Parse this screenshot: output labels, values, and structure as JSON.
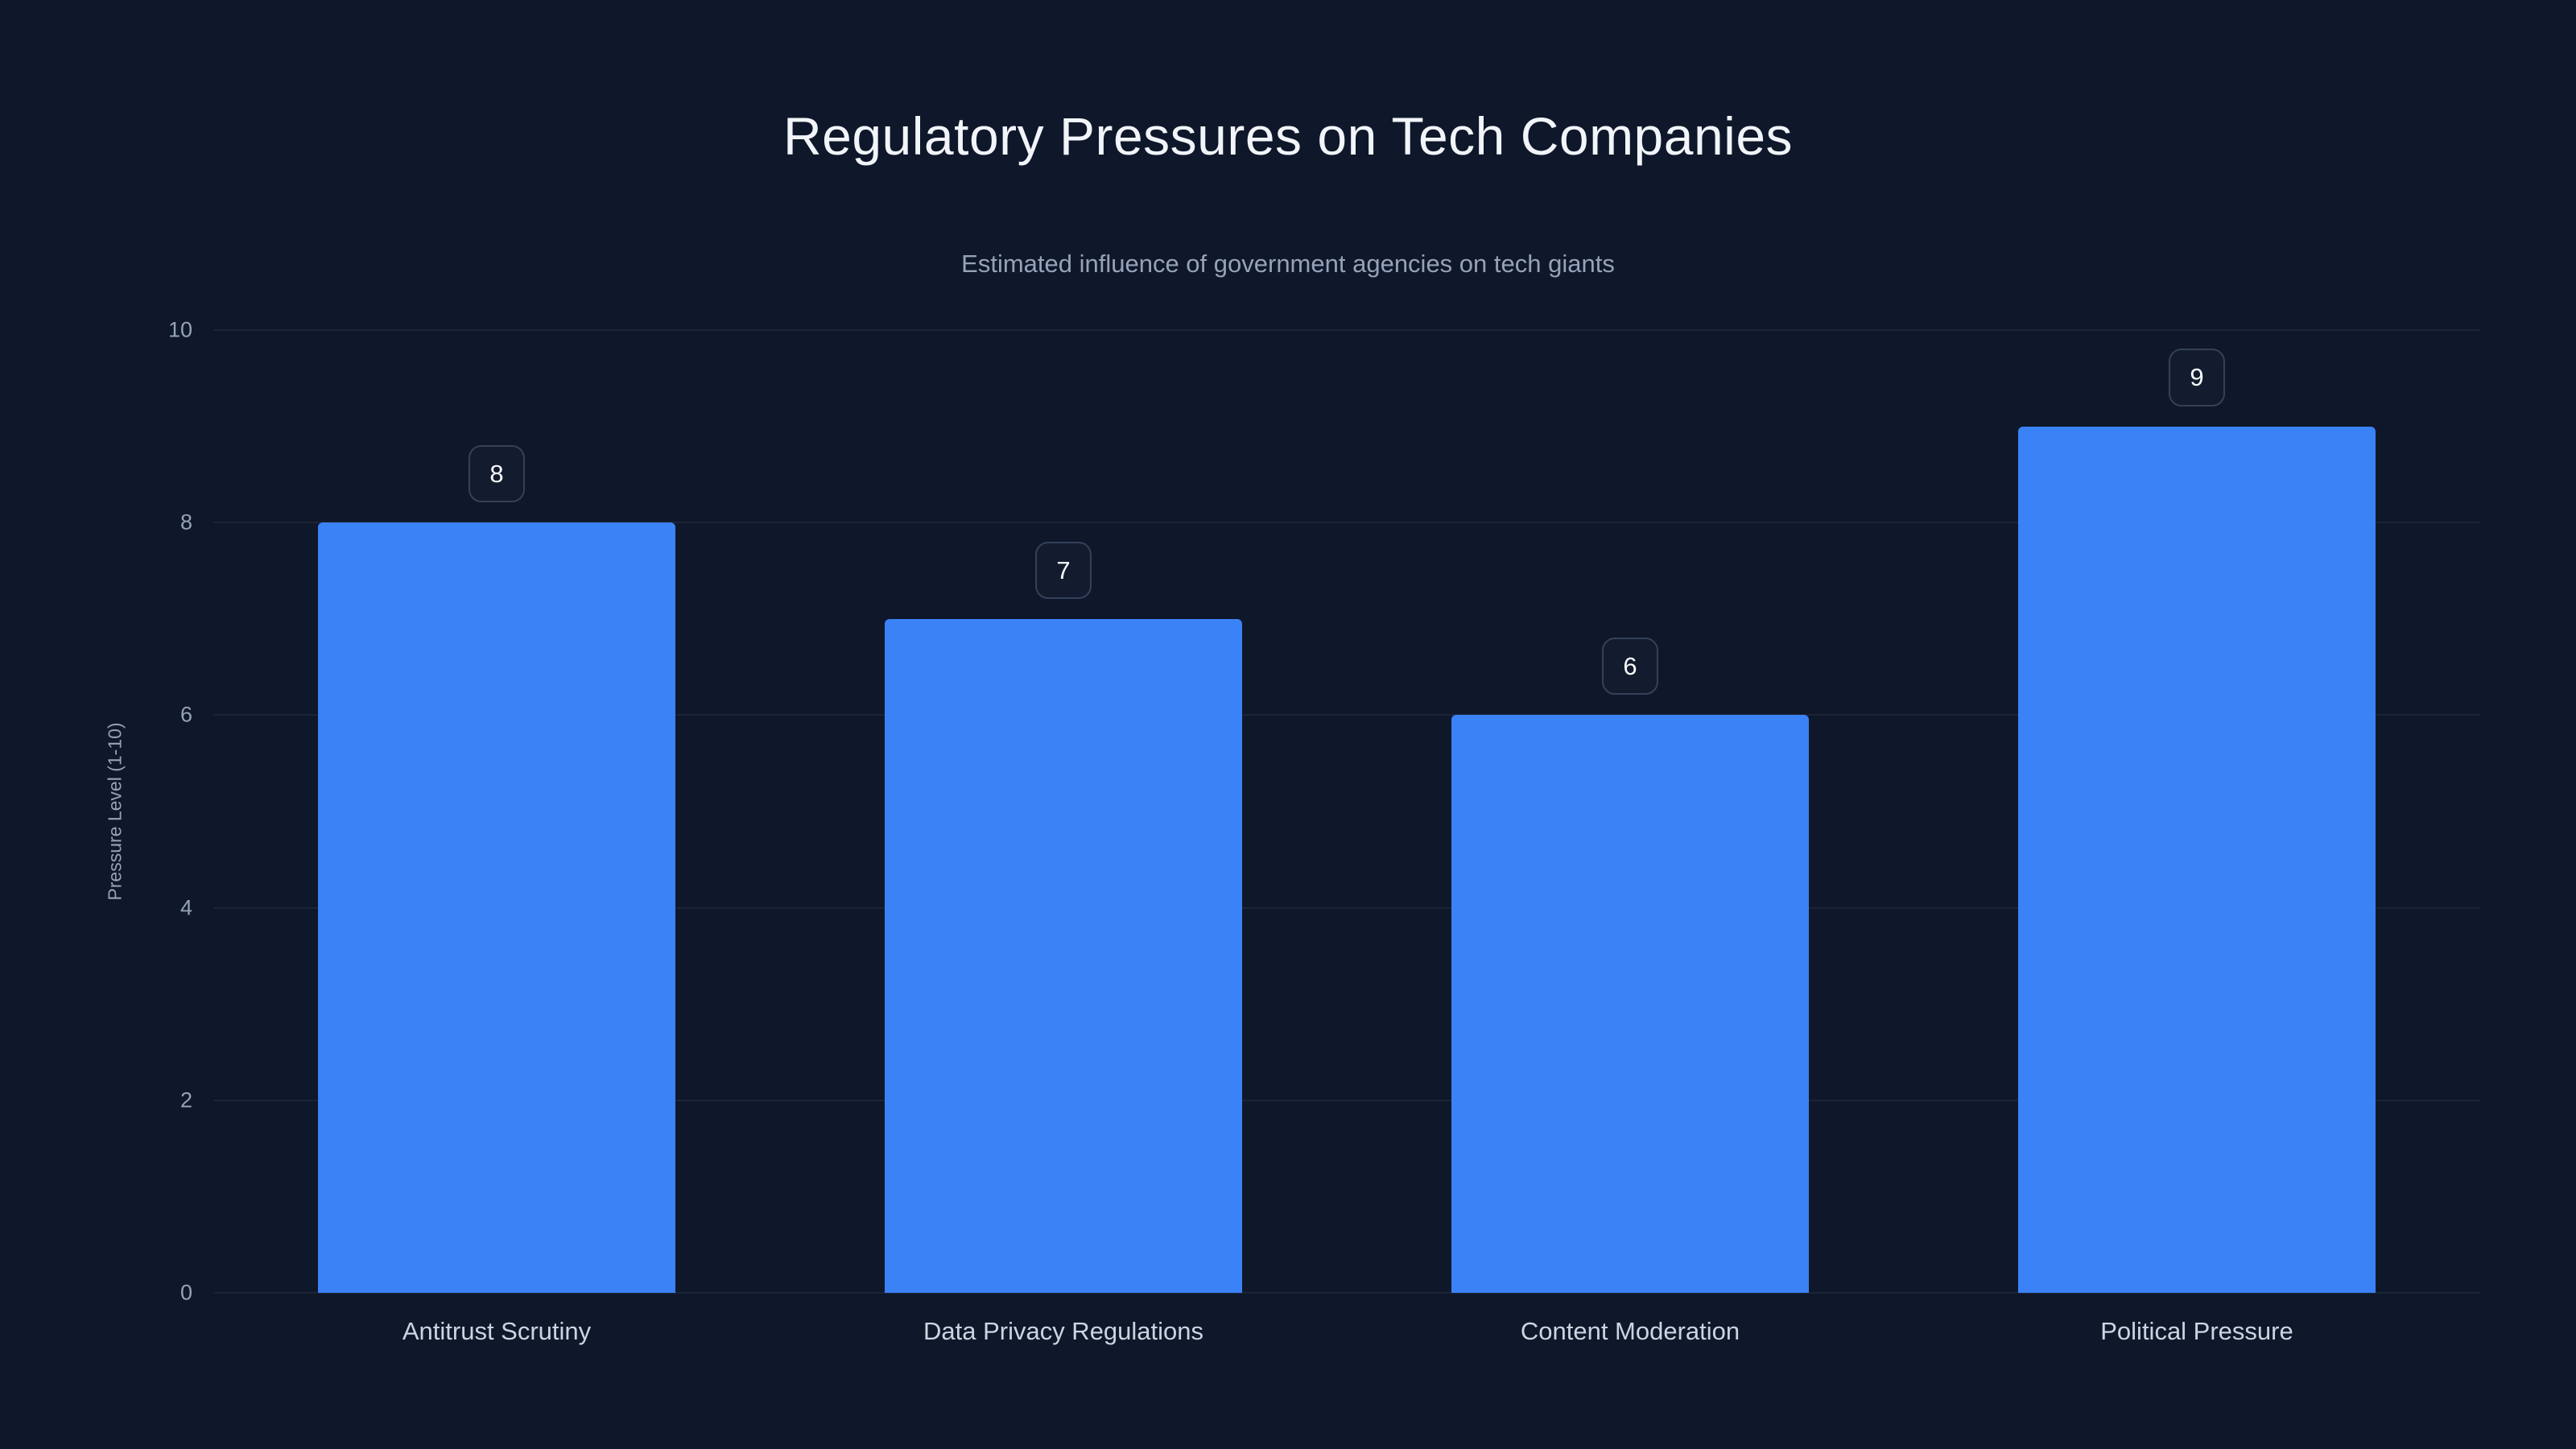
{
  "chart_data": {
    "type": "bar",
    "title": "Regulatory Pressures on Tech Companies",
    "subtitle": "Estimated influence of government agencies on tech giants",
    "categories": [
      "Antitrust Scrutiny",
      "Data Privacy Regulations",
      "Content Moderation",
      "Political Pressure"
    ],
    "values": [
      8,
      7,
      6,
      9
    ],
    "xlabel": "",
    "ylabel": "Pressure Level (1-10)",
    "ylim": [
      0,
      10
    ],
    "yticks": [
      0,
      2,
      4,
      6,
      8,
      10
    ],
    "grid": true,
    "legend": false,
    "data_labels": true,
    "colors": {
      "background": "#0f172a",
      "bar": "#3b82f6",
      "gridline": "#1b2536",
      "title": "#f1f5f9",
      "subtitle": "#94a3b8",
      "tick_label": "#94a3b8",
      "category_label": "#cbd5e1",
      "badge_border": "#33415a",
      "badge_background": "#121c2e",
      "badge_text": "#f8fafc"
    }
  }
}
